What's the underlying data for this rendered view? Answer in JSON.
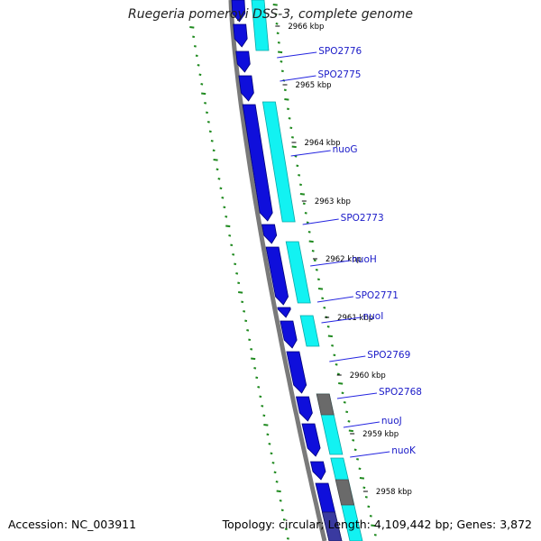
{
  "title": "Ruegeria pomeroyi DSS-3, complete genome",
  "footer": {
    "accession": "Accession: NC_003911",
    "summary": "Topology: circular; Length: 4,109,442 bp; Genes: 3,872"
  },
  "colors": {
    "cds": "#0f0fdb",
    "cds_edge": "#00007a",
    "rna_track": "#12f2f2",
    "rna_edge": "#0aa8a8",
    "backbone": "#7a7a7a",
    "ruler": "#1f8a1f",
    "label": "#1a1ac8",
    "label_line": "#2424e0",
    "other_feature": "#6a6a6a"
  },
  "ticks": [
    {
      "label": "2966 kbp"
    },
    {
      "label": "2965 kbp"
    },
    {
      "label": "2964 kbp"
    },
    {
      "label": "2963 kbp"
    },
    {
      "label": "2962 kbp"
    },
    {
      "label": "2961 kbp"
    },
    {
      "label": "2960 kbp"
    },
    {
      "label": "2959 kbp"
    },
    {
      "label": "2958 kbp"
    }
  ],
  "genes": [
    {
      "label": "SPO2776"
    },
    {
      "label": "SPO2775"
    },
    {
      "label": "nuoG"
    },
    {
      "label": "SPO2773"
    },
    {
      "label": "nuoH"
    },
    {
      "label": "SPO2771"
    },
    {
      "label": "nuoI"
    },
    {
      "label": "SPO2769"
    },
    {
      "label": "SPO2768"
    },
    {
      "label": "nuoJ"
    },
    {
      "label": "nuoK"
    }
  ]
}
